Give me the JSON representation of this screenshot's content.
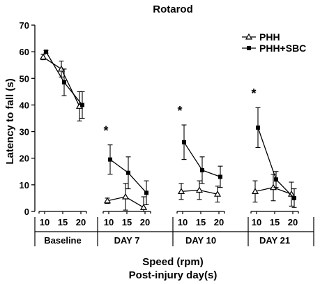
{
  "chart_data": {
    "type": "line",
    "title": "Rotarod",
    "ylabel": "Latency to fall  (s)",
    "xlabel_lines": [
      "Speed (rpm)",
      "Post-injury day(s)"
    ],
    "ylim": [
      0,
      70
    ],
    "yticks": [
      0,
      10,
      20,
      30,
      40,
      50,
      60,
      70
    ],
    "grid": false,
    "legend_position": "top-right",
    "groups": [
      {
        "label": "Baseline",
        "speeds": [
          "10",
          "15",
          "20"
        ],
        "significant": false
      },
      {
        "label": "DAY 7",
        "speeds": [
          "10",
          "15",
          "20"
        ],
        "significant": true
      },
      {
        "label": "DAY 10",
        "speeds": [
          "10",
          "15",
          "20"
        ],
        "significant": true
      },
      {
        "label": "DAY 21",
        "speeds": [
          "10",
          "15",
          "20"
        ],
        "significant": true
      }
    ],
    "significance_marker": "*",
    "series": [
      {
        "name": "PHH",
        "marker": "open-triangle",
        "values": [
          [
            58,
            53.5,
            39.5
          ],
          [
            4,
            5.5,
            1.5
          ],
          [
            7.5,
            8,
            6.5
          ],
          [
            7.5,
            9,
            6.5
          ]
        ],
        "errors": [
          [
            1,
            3,
            5.5
          ],
          [
            1,
            5,
            4
          ],
          [
            3,
            3.5,
            3
          ],
          [
            4,
            5,
            4.5
          ]
        ]
      },
      {
        "name": "PHH+SBC",
        "marker": "filled-square",
        "values": [
          [
            60,
            48.5,
            40
          ],
          [
            19.5,
            14.5,
            7
          ],
          [
            26,
            15.5,
            13
          ],
          [
            31.5,
            12,
            5
          ]
        ],
        "errors": [
          [
            0.5,
            5,
            5
          ],
          [
            5.5,
            6,
            4.5
          ],
          [
            6.5,
            5,
            4
          ],
          [
            7.5,
            3,
            3.5
          ]
        ]
      }
    ]
  }
}
